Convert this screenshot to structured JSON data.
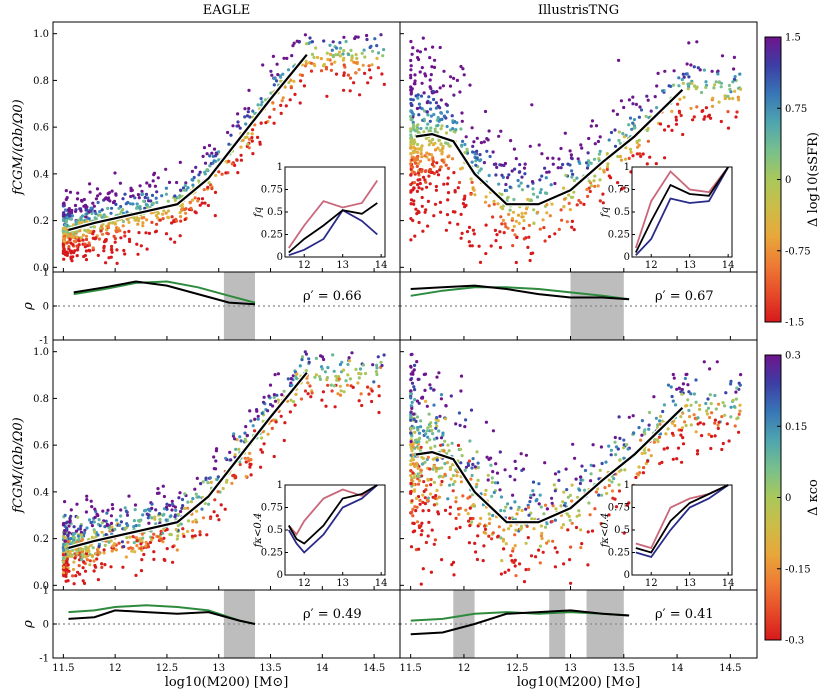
{
  "chart_data": {
    "type": "scatter",
    "columns": [
      {
        "title": "EAGLE"
      },
      {
        "title": "IllustrisTNG"
      }
    ],
    "xlabel": "log10(M200) [M⊙]",
    "ylabel_main": "fCGM/(Ωb/Ω0)",
    "ylabel_rho": "ρ",
    "x_ticks": [
      "11.5",
      "12",
      "12.5",
      "13",
      "13.5",
      "14",
      "14.5"
    ],
    "y_ticks_main": [
      "0.0",
      "0.2",
      "0.4",
      "0.6",
      "0.8",
      "1.0"
    ],
    "y_ticks_rho": [
      "-1",
      "0",
      "1"
    ],
    "xlim": [
      11.4,
      14.75
    ],
    "ylim_main": [
      -0.02,
      1.05
    ],
    "ylim_rho": [
      -1,
      1
    ],
    "rows": [
      {
        "colorbar": {
          "label": "Δ log10(sSFR)",
          "ticks": [
            "1.5",
            "0.75",
            "0",
            "-0.75",
            "-1.5"
          ],
          "range": [
            -1.5,
            1.5
          ]
        },
        "inset_ylabel": "fq",
        "panels": [
          {
            "median_x": [
              11.55,
              11.8,
              12.0,
              12.3,
              12.6,
              12.9,
              13.2,
              13.5,
              13.85
            ],
            "median_y": [
              0.16,
              0.19,
              0.21,
              0.24,
              0.27,
              0.38,
              0.55,
              0.72,
              0.91
            ],
            "scatter_trend": "low",
            "inset": {
              "x": [
                11.6,
                12.0,
                12.5,
                13.0,
                13.5,
                13.9
              ],
              "all": [
                0.05,
                0.2,
                0.35,
                0.52,
                0.48,
                0.6
              ],
              "high": [
                0.1,
                0.35,
                0.62,
                0.55,
                0.6,
                0.85
              ],
              "low": [
                0.02,
                0.08,
                0.2,
                0.52,
                0.4,
                0.25
              ]
            },
            "rho_x": [
              11.6,
              11.9,
              12.2,
              12.5,
              12.8,
              13.1,
              13.35
            ],
            "rho_black": [
              0.4,
              0.55,
              0.72,
              0.6,
              0.35,
              0.1,
              0.05
            ],
            "rho_green": [
              0.35,
              0.5,
              0.68,
              0.72,
              0.55,
              0.3,
              0.1
            ],
            "shade": [
              [
                13.05,
                13.35
              ]
            ],
            "rho_prime": "ρ′ = 0.66"
          },
          {
            "median_x": [
              11.55,
              11.7,
              11.9,
              12.1,
              12.4,
              12.7,
              13.0,
              13.3,
              13.6,
              14.05
            ],
            "median_y": [
              0.56,
              0.57,
              0.54,
              0.4,
              0.27,
              0.27,
              0.33,
              0.45,
              0.56,
              0.76
            ],
            "scatter_trend": "tng",
            "inset": {
              "x": [
                11.6,
                12.0,
                12.5,
                13.0,
                13.5,
                14.0
              ],
              "all": [
                0.05,
                0.4,
                0.8,
                0.7,
                0.68,
                1.0
              ],
              "high": [
                0.1,
                0.62,
                0.95,
                0.75,
                0.72,
                1.0
              ],
              "low": [
                0.02,
                0.2,
                0.65,
                0.6,
                0.62,
                1.0
              ]
            },
            "rho_x": [
              11.5,
              11.8,
              12.1,
              12.4,
              12.7,
              13.0,
              13.3,
              13.55
            ],
            "rho_black": [
              0.5,
              0.55,
              0.6,
              0.5,
              0.35,
              0.25,
              0.25,
              0.2
            ],
            "rho_green": [
              0.3,
              0.45,
              0.55,
              0.55,
              0.5,
              0.4,
              0.3,
              0.2
            ],
            "shade": [
              [
                13.0,
                13.5
              ]
            ],
            "rho_prime": "ρ′ = 0.67"
          }
        ]
      },
      {
        "colorbar": {
          "label": "Δ κco",
          "ticks": [
            "0.3",
            "0.15",
            "0",
            "-0.15",
            "-0.3"
          ],
          "range": [
            -0.3,
            0.3
          ]
        },
        "inset_ylabel": "fκ<0.4",
        "panels": [
          {
            "median_x": [
              11.55,
              11.8,
              12.0,
              12.3,
              12.6,
              12.9,
              13.2,
              13.5,
              13.85
            ],
            "median_y": [
              0.16,
              0.19,
              0.21,
              0.24,
              0.27,
              0.38,
              0.55,
              0.72,
              0.91
            ],
            "scatter_trend": "kappa",
            "inset": {
              "x": [
                11.6,
                11.8,
                12.0,
                12.5,
                13.0,
                13.5,
                13.9
              ],
              "all": [
                0.55,
                0.4,
                0.35,
                0.55,
                0.85,
                0.9,
                1.0
              ],
              "high": [
                0.55,
                0.45,
                0.6,
                0.85,
                0.95,
                0.88,
                1.0
              ],
              "low": [
                0.5,
                0.35,
                0.25,
                0.45,
                0.75,
                0.85,
                1.0
              ]
            },
            "rho_x": [
              11.55,
              11.8,
              12.0,
              12.3,
              12.6,
              12.9,
              13.2,
              13.35
            ],
            "rho_black": [
              0.15,
              0.2,
              0.4,
              0.35,
              0.3,
              0.35,
              0.1,
              0.0
            ],
            "rho_green": [
              0.35,
              0.4,
              0.5,
              0.55,
              0.5,
              0.4,
              0.1,
              0.0
            ],
            "shade": [
              [
                13.05,
                13.35
              ]
            ],
            "rho_prime": "ρ′ = 0.49"
          },
          {
            "median_x": [
              11.55,
              11.7,
              11.9,
              12.1,
              12.4,
              12.7,
              13.0,
              13.3,
              13.6,
              14.05
            ],
            "median_y": [
              0.56,
              0.57,
              0.54,
              0.4,
              0.27,
              0.27,
              0.33,
              0.45,
              0.56,
              0.76
            ],
            "scatter_trend": "kappa_tng",
            "inset": {
              "x": [
                11.6,
                12.0,
                12.5,
                13.0,
                13.5,
                14.0
              ],
              "all": [
                0.3,
                0.25,
                0.6,
                0.8,
                0.9,
                1.0
              ],
              "high": [
                0.35,
                0.3,
                0.75,
                0.85,
                0.9,
                1.0
              ],
              "low": [
                0.25,
                0.2,
                0.5,
                0.75,
                0.85,
                1.0
              ]
            },
            "rho_x": [
              11.5,
              11.8,
              12.1,
              12.4,
              12.7,
              13.0,
              13.3,
              13.55
            ],
            "rho_black": [
              -0.3,
              -0.25,
              0.0,
              0.3,
              0.35,
              0.4,
              0.3,
              0.25
            ],
            "rho_green": [
              0.1,
              0.15,
              0.3,
              0.35,
              0.3,
              0.35,
              0.3,
              0.25
            ],
            "shade": [
              [
                11.9,
                12.1
              ],
              [
                12.8,
                12.95
              ],
              [
                13.15,
                13.5
              ]
            ],
            "rho_prime": "ρ′ = 0.41"
          }
        ]
      }
    ],
    "inset_x_ticks": [
      "12",
      "13",
      "14"
    ],
    "inset_y_ticks": [
      "0",
      "0.25",
      "0.5",
      "0.75",
      "1"
    ],
    "inset_xlim": [
      11.5,
      14.1
    ]
  },
  "colors": {
    "median": "#000000",
    "rho_green": "#2e8b3e",
    "inset_high": "#c9687a",
    "inset_low": "#2a2a8a",
    "shade": "#bdbdbd",
    "zero_line": "#888888"
  }
}
